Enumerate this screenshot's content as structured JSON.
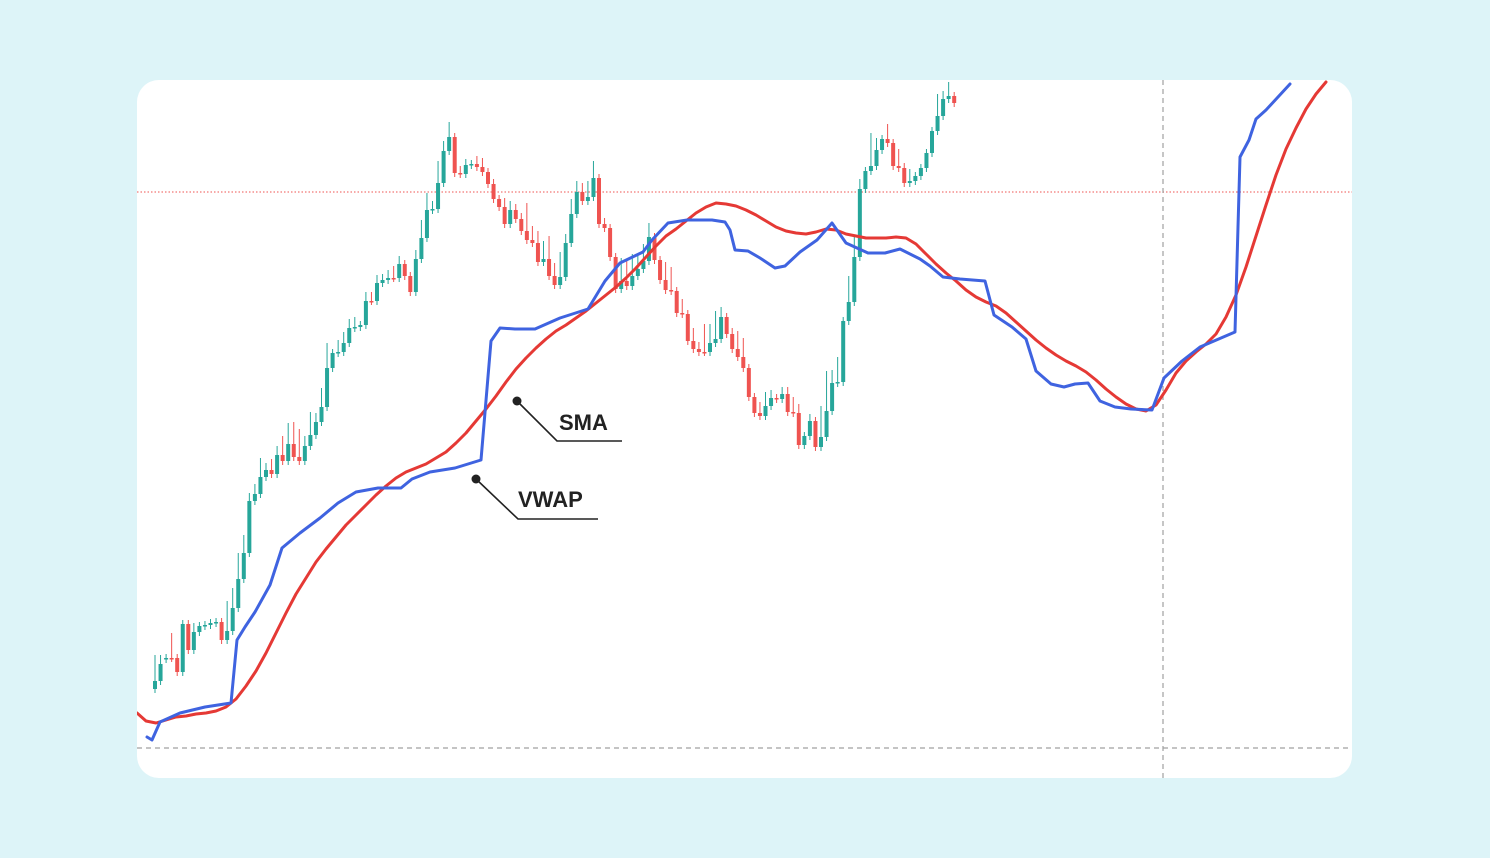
{
  "chart_data": {
    "type": "candlestick",
    "colors": {
      "bull": "#26a69a",
      "bear": "#ef5350",
      "sma": "#e53935",
      "vwap": "#3f63e0",
      "price_line": "#ef5350",
      "crosshair": "#a0a0a0",
      "background": "#ddf4f8"
    },
    "annotations": [
      {
        "text": "SMA",
        "series": "sma"
      },
      {
        "text": "VWAP",
        "series": "vwap"
      }
    ],
    "candles": [
      [
        689,
        659,
        599,
        681
      ],
      [
        681,
        659,
        659,
        664
      ],
      [
        659,
        658,
        608,
        658
      ],
      [
        658,
        637,
        616,
        658
      ],
      [
        658,
        669,
        626,
        672
      ],
      [
        672,
        666,
        627,
        624
      ],
      [
        624,
        637,
        618,
        650
      ],
      [
        650,
        627,
        618,
        632
      ],
      [
        632,
        627,
        617,
        626
      ],
      [
        626,
        628,
        617,
        625
      ],
      [
        625,
        632,
        610,
        623
      ],
      [
        623,
        622,
        618,
        622
      ],
      [
        622,
        623,
        619,
        640
      ],
      [
        640,
        605,
        603,
        631
      ],
      [
        631,
        592,
        573,
        608
      ],
      [
        608,
        557,
        559,
        579
      ],
      [
        579,
        539,
        545,
        553
      ],
      [
        553,
        497,
        482,
        501
      ],
      [
        501,
        488,
        460,
        494
      ],
      [
        494,
        462,
        454,
        477
      ],
      [
        477,
        467,
        450,
        470
      ],
      [
        470,
        463,
        452,
        474
      ],
      [
        474,
        450,
        444,
        455
      ],
      [
        455,
        440,
        438,
        461
      ],
      [
        461,
        427,
        423,
        444
      ],
      [
        444,
        426,
        419,
        457
      ],
      [
        457,
        433,
        427,
        461
      ],
      [
        461,
        440,
        425,
        446
      ],
      [
        446,
        416,
        413,
        435
      ],
      [
        435,
        417,
        416,
        422
      ],
      [
        422,
        392,
        384,
        407
      ],
      [
        407,
        347,
        343,
        368
      ],
      [
        368,
        358,
        348,
        353
      ],
      [
        353,
        344,
        338,
        352
      ],
      [
        352,
        336,
        324,
        343
      ],
      [
        343,
        323,
        314,
        328
      ],
      [
        328,
        321,
        315,
        327
      ],
      [
        327,
        326,
        305,
        325
      ],
      [
        325,
        296,
        301,
        301
      ],
      [
        301,
        296,
        290,
        301
      ],
      [
        301,
        279,
        267,
        283
      ],
      [
        283,
        278,
        271,
        280
      ],
      [
        280,
        274,
        267,
        278
      ],
      [
        278,
        270,
        263,
        278
      ],
      [
        278,
        260,
        250,
        264
      ],
      [
        264,
        271,
        266,
        276
      ],
      [
        276,
        286,
        289,
        292
      ],
      [
        292,
        254,
        245,
        259
      ],
      [
        259,
        224,
        218,
        238
      ],
      [
        238,
        197,
        204,
        210
      ],
      [
        210,
        205,
        196,
        209
      ],
      [
        209,
        165,
        161,
        183
      ],
      [
        183,
        145,
        145,
        151
      ],
      [
        151,
        126,
        128,
        137
      ],
      [
        137,
        138,
        140,
        173
      ],
      [
        173,
        170,
        162,
        174
      ],
      [
        174,
        163,
        151,
        165
      ],
      [
        165,
        166,
        144,
        164
      ],
      [
        164,
        160,
        147,
        167
      ],
      [
        167,
        162,
        140,
        172
      ],
      [
        172,
        172,
        152,
        184
      ],
      [
        184,
        183,
        177,
        199
      ],
      [
        199,
        201,
        193,
        207
      ],
      [
        207,
        202,
        201,
        224
      ],
      [
        224,
        205,
        202,
        210
      ],
      [
        210,
        208,
        194,
        219
      ],
      [
        219,
        217,
        212,
        231
      ],
      [
        231,
        207,
        203,
        240
      ],
      [
        240,
        230,
        219,
        243
      ],
      [
        243,
        235,
        235,
        262
      ],
      [
        262,
        245,
        230,
        259
      ],
      [
        259,
        240,
        235,
        276
      ],
      [
        276,
        267,
        260,
        285
      ],
      [
        285,
        256,
        241,
        277
      ],
      [
        277,
        238,
        238,
        243
      ],
      [
        243,
        203,
        207,
        214
      ],
      [
        214,
        185,
        180,
        192
      ],
      [
        192,
        187,
        169,
        201
      ],
      [
        201,
        185,
        171,
        197
      ],
      [
        197,
        165,
        163,
        178
      ],
      [
        178,
        184,
        181,
        224
      ],
      [
        224,
        222,
        208,
        228
      ],
      [
        228,
        245,
        244,
        257
      ],
      [
        257,
        265,
        251,
        289
      ],
      [
        289,
        262,
        258,
        281
      ],
      [
        281,
        265,
        244,
        286
      ],
      [
        286,
        258,
        251,
        276
      ],
      [
        276,
        259,
        250,
        269
      ],
      [
        269,
        248,
        237,
        261
      ],
      [
        261,
        227,
        235,
        237
      ],
      [
        237,
        240,
        233,
        260
      ],
      [
        260,
        263,
        253,
        280
      ],
      [
        280,
        266,
        258,
        290
      ],
      [
        290,
        271,
        276,
        291
      ],
      [
        291,
        292,
        287,
        313
      ],
      [
        313,
        303,
        288,
        314
      ],
      [
        314,
        321,
        314,
        341
      ],
      [
        341,
        332,
        322,
        349
      ],
      [
        349,
        346,
        328,
        352
      ],
      [
        352,
        328,
        320,
        352
      ],
      [
        352,
        328,
        328,
        343
      ],
      [
        343,
        315,
        306,
        339
      ],
      [
        339,
        311,
        297,
        317
      ],
      [
        317,
        322,
        310,
        334
      ],
      [
        334,
        332,
        323,
        349
      ],
      [
        349,
        335,
        322,
        357
      ],
      [
        357,
        342,
        340,
        368
      ],
      [
        368,
        371,
        369,
        397
      ],
      [
        397,
        407,
        410,
        413
      ],
      [
        413,
        406,
        410,
        416
      ],
      [
        416,
        396,
        393,
        406
      ],
      [
        406,
        394,
        389,
        398
      ],
      [
        398,
        398,
        387,
        399
      ],
      [
        399,
        391,
        393,
        394
      ],
      [
        394,
        391,
        380,
        412
      ],
      [
        412,
        401,
        403,
        413
      ],
      [
        413,
        408,
        404,
        445
      ],
      [
        445,
        443,
        416,
        436
      ],
      [
        436,
        418,
        413,
        421
      ],
      [
        421,
        425,
        415,
        447
      ],
      [
        447,
        410,
        425,
        437
      ],
      [
        437,
        375,
        351,
        411
      ],
      [
        411,
        374,
        374,
        383
      ],
      [
        383,
        361,
        365,
        382
      ],
      [
        382,
        352,
        354,
        321
      ],
      [
        321,
        280,
        279,
        302
      ],
      [
        302,
        240,
        233,
        257
      ],
      [
        257,
        183,
        186,
        189
      ],
      [
        189,
        183,
        172,
        171
      ],
      [
        171,
        137,
        153,
        166
      ],
      [
        166,
        142,
        138,
        150
      ],
      [
        150,
        140,
        135,
        139
      ],
      [
        139,
        128,
        137,
        143
      ],
      [
        143,
        145,
        149,
        166
      ],
      [
        166,
        153,
        160,
        168
      ],
      [
        168,
        167,
        168,
        183
      ],
      [
        183,
        173,
        173,
        181
      ],
      [
        181,
        176,
        160,
        176
      ],
      [
        176,
        183,
        171,
        168
      ],
      [
        168,
        158,
        157,
        153
      ],
      [
        153,
        141,
        135,
        131
      ],
      [
        131,
        98,
        95,
        116
      ],
      [
        116,
        95,
        89,
        99
      ],
      [
        99,
        86,
        87,
        96
      ],
      [
        96,
        104,
        96,
        103
      ]
    ],
    "sma": [
      [
        137,
        713
      ],
      [
        146,
        721
      ],
      [
        156,
        723
      ],
      [
        166,
        720
      ],
      [
        176,
        717
      ],
      [
        186,
        716
      ],
      [
        196,
        714
      ],
      [
        206,
        713
      ],
      [
        216,
        711
      ],
      [
        226,
        707
      ],
      [
        236,
        699
      ],
      [
        246,
        686
      ],
      [
        256,
        671
      ],
      [
        266,
        653
      ],
      [
        276,
        633
      ],
      [
        286,
        613
      ],
      [
        296,
        594
      ],
      [
        306,
        578
      ],
      [
        316,
        562
      ],
      [
        326,
        549
      ],
      [
        336,
        537
      ],
      [
        346,
        525
      ],
      [
        356,
        515
      ],
      [
        366,
        505
      ],
      [
        376,
        495
      ],
      [
        386,
        486
      ],
      [
        396,
        478
      ],
      [
        406,
        472
      ],
      [
        416,
        468
      ],
      [
        426,
        464
      ],
      [
        436,
        458
      ],
      [
        446,
        452
      ],
      [
        456,
        443
      ],
      [
        466,
        433
      ],
      [
        476,
        421
      ],
      [
        486,
        409
      ],
      [
        496,
        396
      ],
      [
        506,
        382
      ],
      [
        516,
        369
      ],
      [
        526,
        358
      ],
      [
        536,
        348
      ],
      [
        546,
        339
      ],
      [
        556,
        331
      ],
      [
        566,
        325
      ],
      [
        576,
        318
      ],
      [
        586,
        311
      ],
      [
        596,
        303
      ],
      [
        606,
        295
      ],
      [
        616,
        287
      ],
      [
        626,
        278
      ],
      [
        636,
        268
      ],
      [
        646,
        257
      ],
      [
        656,
        246
      ],
      [
        666,
        236
      ],
      [
        676,
        229
      ],
      [
        686,
        221
      ],
      [
        696,
        213
      ],
      [
        706,
        207
      ],
      [
        716,
        203
      ],
      [
        726,
        204
      ],
      [
        736,
        206
      ],
      [
        746,
        210
      ],
      [
        756,
        215
      ],
      [
        766,
        221
      ],
      [
        776,
        227
      ],
      [
        786,
        231
      ],
      [
        796,
        233
      ],
      [
        806,
        234
      ],
      [
        816,
        232
      ],
      [
        826,
        229
      ],
      [
        836,
        230
      ],
      [
        846,
        234
      ],
      [
        856,
        236
      ],
      [
        866,
        238
      ],
      [
        876,
        238
      ],
      [
        886,
        238
      ],
      [
        896,
        237
      ],
      [
        906,
        238
      ],
      [
        916,
        244
      ],
      [
        926,
        254
      ],
      [
        936,
        264
      ],
      [
        946,
        273
      ],
      [
        956,
        281
      ],
      [
        966,
        290
      ],
      [
        976,
        297
      ],
      [
        986,
        302
      ],
      [
        996,
        306
      ],
      [
        1006,
        313
      ],
      [
        1016,
        322
      ],
      [
        1026,
        331
      ],
      [
        1036,
        340
      ],
      [
        1046,
        348
      ],
      [
        1056,
        355
      ],
      [
        1066,
        361
      ],
      [
        1076,
        366
      ],
      [
        1086,
        372
      ],
      [
        1096,
        380
      ],
      [
        1106,
        389
      ],
      [
        1116,
        397
      ],
      [
        1126,
        404
      ],
      [
        1136,
        409
      ],
      [
        1146,
        411
      ],
      [
        1156,
        405
      ],
      [
        1166,
        390
      ],
      [
        1176,
        373
      ],
      [
        1186,
        361
      ],
      [
        1196,
        352
      ],
      [
        1206,
        344
      ],
      [
        1216,
        334
      ],
      [
        1226,
        317
      ],
      [
        1236,
        295
      ],
      [
        1246,
        267
      ],
      [
        1256,
        236
      ],
      [
        1266,
        205
      ],
      [
        1276,
        175
      ],
      [
        1286,
        149
      ],
      [
        1296,
        128
      ],
      [
        1306,
        109
      ],
      [
        1316,
        94
      ],
      [
        1326,
        82
      ]
    ],
    "vwap": [
      [
        147,
        737
      ],
      [
        152,
        740
      ],
      [
        160,
        722
      ],
      [
        180,
        713
      ],
      [
        205,
        707
      ],
      [
        231,
        703
      ],
      [
        237,
        640
      ],
      [
        245,
        627
      ],
      [
        255,
        612
      ],
      [
        270,
        585
      ],
      [
        282,
        548
      ],
      [
        300,
        533
      ],
      [
        320,
        518
      ],
      [
        338,
        503
      ],
      [
        356,
        492
      ],
      [
        378,
        488
      ],
      [
        401,
        488
      ],
      [
        412,
        479
      ],
      [
        430,
        472
      ],
      [
        455,
        468
      ],
      [
        481,
        460
      ],
      [
        491,
        341
      ],
      [
        500,
        328
      ],
      [
        515,
        329
      ],
      [
        525,
        329
      ],
      [
        535,
        329
      ],
      [
        560,
        318
      ],
      [
        588,
        309
      ],
      [
        605,
        281
      ],
      [
        620,
        263
      ],
      [
        643,
        252
      ],
      [
        652,
        240
      ],
      [
        668,
        223
      ],
      [
        687,
        220
      ],
      [
        712,
        220
      ],
      [
        725,
        222
      ],
      [
        730,
        230
      ],
      [
        735,
        250
      ],
      [
        748,
        251
      ],
      [
        760,
        258
      ],
      [
        775,
        268
      ],
      [
        785,
        266
      ],
      [
        800,
        252
      ],
      [
        817,
        240
      ],
      [
        832,
        223
      ],
      [
        846,
        243
      ],
      [
        868,
        253
      ],
      [
        885,
        253
      ],
      [
        900,
        249
      ],
      [
        920,
        259
      ],
      [
        930,
        266
      ],
      [
        943,
        277
      ],
      [
        960,
        279
      ],
      [
        985,
        281
      ],
      [
        994,
        315
      ],
      [
        1012,
        327
      ],
      [
        1026,
        339
      ],
      [
        1036,
        371
      ],
      [
        1051,
        384
      ],
      [
        1064,
        387
      ],
      [
        1075,
        384
      ],
      [
        1088,
        383
      ],
      [
        1100,
        401
      ],
      [
        1115,
        407
      ],
      [
        1131,
        409
      ],
      [
        1152,
        410
      ],
      [
        1164,
        378
      ],
      [
        1182,
        361
      ],
      [
        1200,
        347
      ],
      [
        1235,
        332
      ],
      [
        1240,
        157
      ],
      [
        1249,
        140
      ],
      [
        1256,
        119
      ],
      [
        1266,
        110
      ],
      [
        1290,
        84
      ]
    ]
  }
}
